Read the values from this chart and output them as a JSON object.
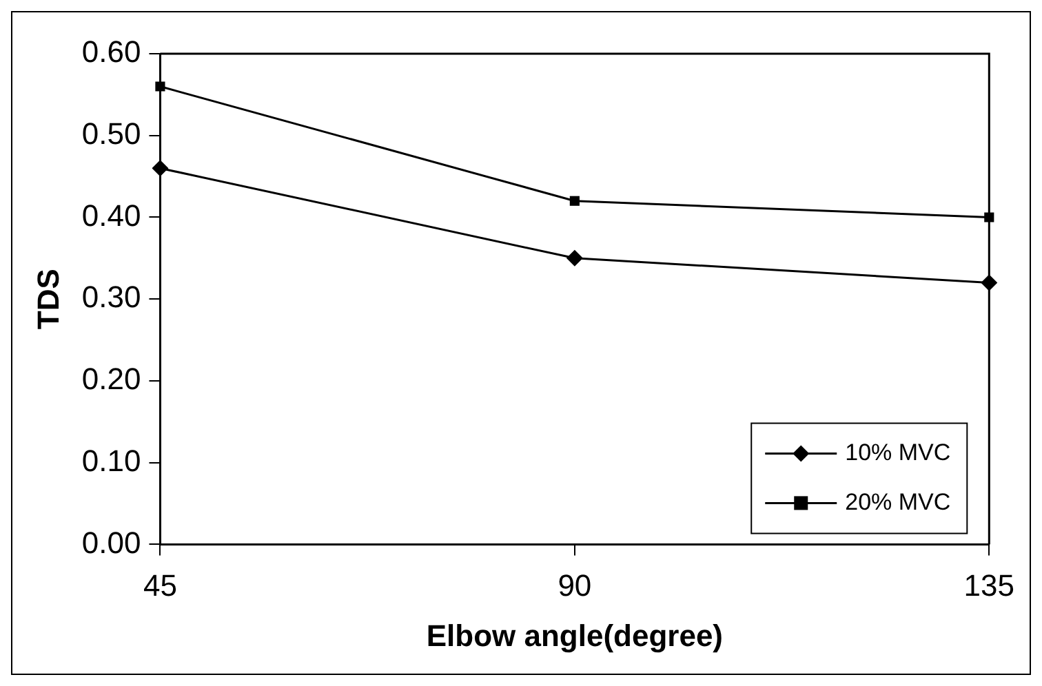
{
  "chart_data": {
    "type": "line",
    "xlabel": "Elbow angle(degree)",
    "ylabel": "TDS",
    "categories": [
      "45",
      "90",
      "135"
    ],
    "series": [
      {
        "name": "10% MVC",
        "color": "#000000",
        "marker": "diamond",
        "values": [
          0.46,
          0.35,
          0.32
        ]
      },
      {
        "name": "20% MVC",
        "color": "#000000",
        "marker": "square",
        "values": [
          0.56,
          0.42,
          0.4
        ]
      }
    ],
    "ylim": [
      0,
      0.6
    ],
    "yticks": [
      {
        "value": 0,
        "label": "0.00"
      },
      {
        "value": 0.1,
        "label": "0.10"
      },
      {
        "value": 0.2,
        "label": "0.20"
      },
      {
        "value": 0.3,
        "label": "0.30"
      },
      {
        "value": 0.4,
        "label": "0.40"
      },
      {
        "value": 0.5,
        "label": "0.50"
      },
      {
        "value": 0.6,
        "label": "0.60"
      }
    ],
    "grid": false,
    "legend": "bottom right",
    "line_style": "solid"
  }
}
